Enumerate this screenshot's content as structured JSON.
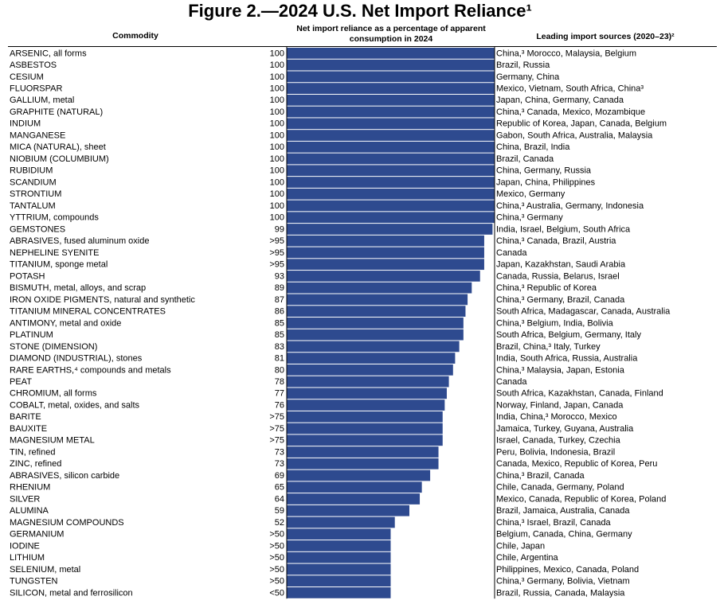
{
  "chart_data": {
    "type": "bar",
    "orientation": "horizontal",
    "title": "Figure 2.—2024 U.S. Net Import Reliance¹",
    "column_headers": [
      "Commodity",
      "Net import reliance as a percentage of apparent consumption in 2024",
      "Leading import sources (2020–23)²"
    ],
    "color": "#2e4a8f",
    "xlim": [
      0,
      100
    ],
    "categories": [
      "ARSENIC, all forms",
      "ASBESTOS",
      "CESIUM",
      "FLUORSPAR",
      "GALLIUM, metal",
      "GRAPHITE (NATURAL)",
      "INDIUM",
      "MANGANESE",
      "MICA (NATURAL), sheet",
      "NIOBIUM (COLUMBIUM)",
      "RUBIDIUM",
      "SCANDIUM",
      "STRONTIUM",
      "TANTALUM",
      "YTTRIUM, compounds",
      "GEMSTONES",
      "ABRASIVES, fused aluminum oxide",
      "NEPHELINE SYENITE",
      "TITANIUM, sponge metal",
      "POTASH",
      "BISMUTH, metal, alloys, and scrap",
      "IRON OXIDE PIGMENTS, natural and synthetic",
      "TITANIUM MINERAL CONCENTRATES",
      "ANTIMONY, metal and oxide",
      "PLATINUM",
      "STONE (DIMENSION)",
      "DIAMOND (INDUSTRIAL), stones",
      "RARE EARTHS,⁴ compounds and metals",
      "PEAT",
      "CHROMIUM, all forms",
      "COBALT, metal, oxides, and salts",
      "BARITE",
      "BAUXITE",
      "MAGNESIUM METAL",
      "TIN, refined",
      "ZINC, refined",
      "ABRASIVES, silicon carbide",
      "RHENIUM",
      "SILVER",
      "ALUMINA",
      "MAGNESIUM COMPOUNDS",
      "GERMANIUM",
      "IODINE",
      "LITHIUM",
      "SELENIUM, metal",
      "TUNGSTEN",
      "SILICON, metal and ferrosilicon"
    ],
    "values": [
      100,
      100,
      100,
      100,
      100,
      100,
      100,
      100,
      100,
      100,
      100,
      100,
      100,
      100,
      100,
      99,
      95,
      95,
      95,
      93,
      89,
      87,
      86,
      85,
      85,
      83,
      81,
      80,
      78,
      77,
      76,
      75,
      75,
      75,
      73,
      73,
      69,
      65,
      64,
      59,
      52,
      50,
      50,
      50,
      50,
      50,
      50
    ],
    "value_labels": [
      "100",
      "100",
      "100",
      "100",
      "100",
      "100",
      "100",
      "100",
      "100",
      "100",
      "100",
      "100",
      "100",
      "100",
      "100",
      "99",
      ">95",
      ">95",
      ">95",
      "93",
      "89",
      "87",
      "86",
      "85",
      "85",
      "83",
      "81",
      "80",
      "78",
      "77",
      "76",
      ">75",
      ">75",
      ">75",
      "73",
      "73",
      "69",
      "65",
      "64",
      "59",
      "52",
      ">50",
      ">50",
      ">50",
      ">50",
      ">50",
      "<50"
    ],
    "sources": [
      "China,³ Morocco, Malaysia, Belgium",
      "Brazil, Russia",
      "Germany, China",
      "Mexico, Vietnam, South Africa, China³",
      "Japan, China, Germany, Canada",
      "China,³ Canada, Mexico, Mozambique",
      "Republic of Korea, Japan, Canada, Belgium",
      "Gabon, South Africa, Australia, Malaysia",
      "China, Brazil, India",
      "Brazil, Canada",
      "China, Germany, Russia",
      "Japan, China, Philippines",
      "Mexico, Germany",
      "China,³ Australia, Germany, Indonesia",
      "China,³ Germany",
      "India, Israel, Belgium, South Africa",
      "China,³ Canada, Brazil, Austria",
      "Canada",
      "Japan, Kazakhstan, Saudi Arabia",
      "Canada, Russia, Belarus, Israel",
      "China,³ Republic of Korea",
      "China,³ Germany, Brazil, Canada",
      "South Africa, Madagascar, Canada, Australia",
      "China,³ Belgium, India, Bolivia",
      "South Africa, Belgium, Germany, Italy",
      "Brazil, China,³ Italy, Turkey",
      "India, South Africa, Russia, Australia",
      "China,³ Malaysia, Japan, Estonia",
      "Canada",
      "South Africa, Kazakhstan, Canada, Finland",
      "Norway, Finland, Japan, Canada",
      "India, China,³ Morocco, Mexico",
      "Jamaica, Turkey, Guyana, Australia",
      "Israel, Canada, Turkey, Czechia",
      "Peru, Bolivia, Indonesia, Brazil",
      "Canada, Mexico, Republic of Korea, Peru",
      "China,³ Brazil, Canada",
      "Chile, Canada, Germany, Poland",
      "Mexico, Canada, Republic of Korea, Poland",
      "Brazil, Jamaica, Australia, Canada",
      "China,³ Israel, Brazil, Canada",
      "Belgium, Canada, China, Germany",
      "Chile, Japan",
      "Chile, Argentina",
      "Philippines, Mexico, Canada, Poland",
      "China,³ Germany, Bolivia, Vietnam",
      "Brazil, Russia, Canada, Malaysia"
    ]
  }
}
